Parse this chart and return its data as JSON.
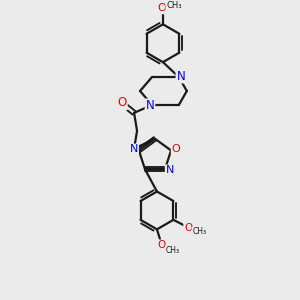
{
  "background_color": "#ebebeb",
  "bond_color": "#1a1a1a",
  "nitrogen_color": "#0000ee",
  "oxygen_color": "#ee0000",
  "bond_width": 1.6,
  "figsize": [
    3.0,
    3.0
  ],
  "dpi": 100,
  "xlim": [
    0,
    300
  ],
  "ylim": [
    0,
    300
  ]
}
